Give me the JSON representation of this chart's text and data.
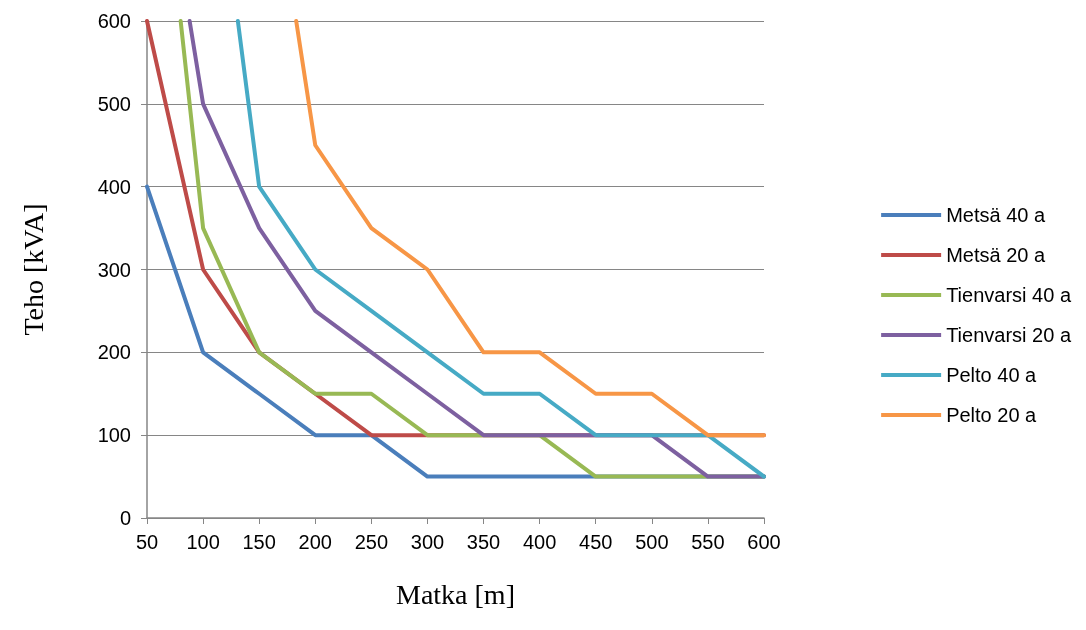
{
  "chart_data": {
    "type": "line",
    "xlabel": "Matka [m]",
    "ylabel": "Teho [kVA]",
    "xlim": [
      50,
      600
    ],
    "xticks": [
      50,
      100,
      150,
      200,
      250,
      300,
      350,
      400,
      450,
      500,
      550,
      600
    ],
    "ylim": [
      0,
      600
    ],
    "yticks": [
      0,
      100,
      200,
      300,
      400,
      500,
      600
    ],
    "grid": "y",
    "legend": "right",
    "marker": "none",
    "line_style": "solid",
    "series": [
      {
        "name": "Metsä 40 a",
        "color": "#4a7ebb",
        "x": [
          50,
          100,
          150,
          200,
          250,
          300,
          350,
          400,
          450,
          500,
          550,
          600
        ],
        "values": [
          400,
          200,
          150,
          100,
          100,
          50,
          50,
          50,
          50,
          50,
          50,
          50
        ]
      },
      {
        "name": "Metsä 20 a",
        "color": "#be4b48",
        "x": [
          50,
          100,
          150,
          200,
          250,
          300,
          350,
          400,
          450,
          500,
          550,
          600
        ],
        "values": [
          600,
          300,
          200,
          150,
          100,
          100,
          100,
          100,
          100,
          100,
          100,
          100
        ]
      },
      {
        "name": "Tienvarsi 40 a",
        "color": "#98b954",
        "x": [
          80,
          100,
          150,
          200,
          250,
          300,
          350,
          400,
          450,
          500,
          550,
          600
        ],
        "values": [
          600,
          350,
          200,
          150,
          150,
          100,
          100,
          100,
          50,
          50,
          50,
          50
        ]
      },
      {
        "name": "Tienvarsi 20 a",
        "color": "#7d60a0",
        "x": [
          88,
          100,
          150,
          200,
          250,
          300,
          350,
          400,
          450,
          500,
          550,
          600
        ],
        "values": [
          600,
          500,
          350,
          250,
          200,
          150,
          100,
          100,
          100,
          100,
          50,
          50
        ]
      },
      {
        "name": "Pelto 40 a",
        "color": "#46aac5",
        "x": [
          131,
          150,
          200,
          250,
          300,
          350,
          400,
          450,
          500,
          550,
          600
        ],
        "values": [
          600,
          400,
          300,
          250,
          200,
          150,
          150,
          100,
          100,
          100,
          50
        ]
      },
      {
        "name": "Pelto 20 a",
        "color": "#f79646",
        "x": [
          183,
          200,
          250,
          300,
          350,
          400,
          450,
          500,
          550,
          600
        ],
        "values": [
          600,
          450,
          350,
          300,
          200,
          200,
          150,
          150,
          100,
          100
        ]
      }
    ]
  }
}
